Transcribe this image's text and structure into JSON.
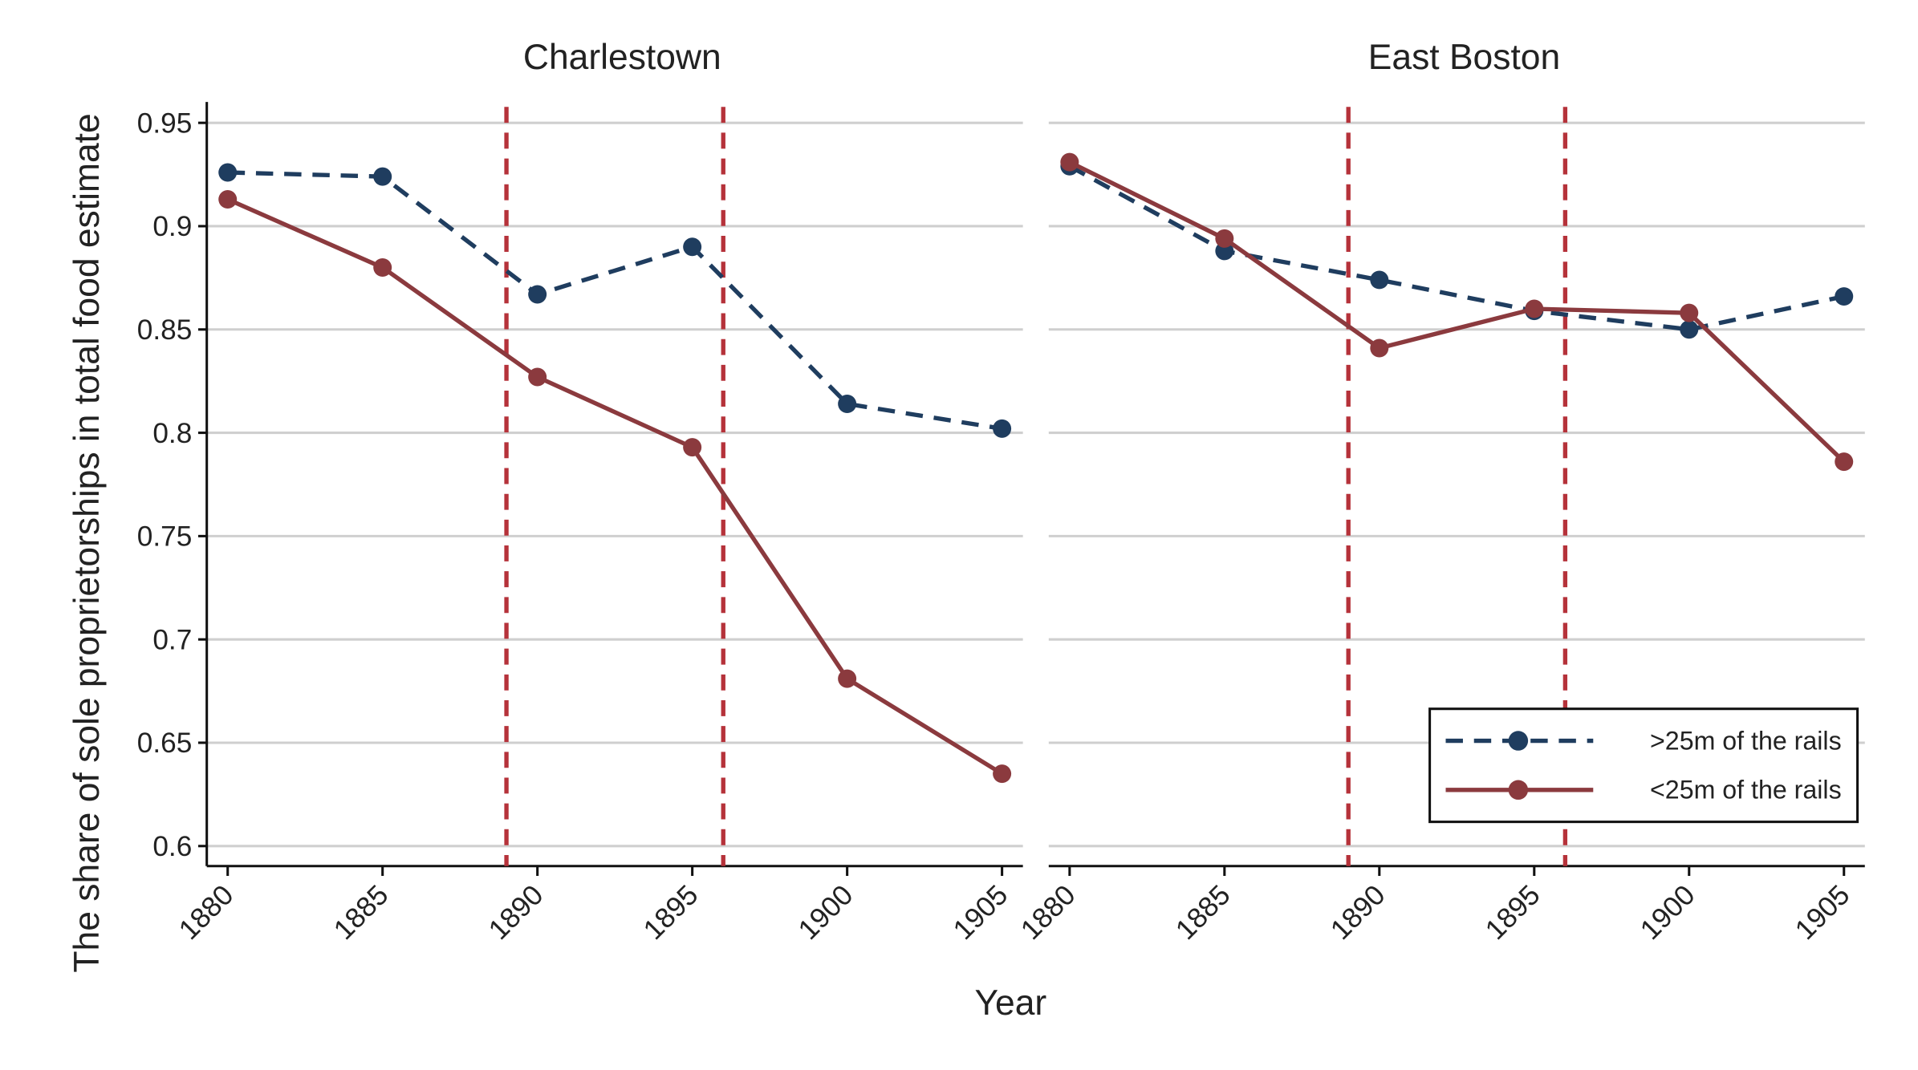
{
  "chart_data": {
    "type": "line",
    "ylabel": "The share of sole proprietorships in total food estimate",
    "xlabel": "Year",
    "ylim": [
      0.59,
      0.96
    ],
    "yticks": [
      "0.6",
      "0.65",
      "0.7",
      "0.75",
      "0.8",
      "0.85",
      "0.9",
      "0.95"
    ],
    "ytick_values": [
      0.6,
      0.65,
      0.7,
      0.75,
      0.8,
      0.85,
      0.9,
      0.95
    ],
    "x": [
      1880,
      1885,
      1890,
      1895,
      1900,
      1905
    ],
    "xticks": [
      "1880",
      "1885",
      "1890",
      "1895",
      "1900",
      "1905"
    ],
    "xlim": [
      1879.3,
      1905.7
    ],
    "grid": true,
    "vlines": [
      1889,
      1896
    ],
    "legend": {
      "placement": "bottom-right",
      "entries": [
        ">25m of the rails",
        "<25m of the rails"
      ]
    },
    "colors": {
      "far": "#1f3d5f",
      "near": "#8b3a3e",
      "vline": "#b5323a",
      "grid": "#cfcfcf"
    },
    "panels": [
      {
        "title": "Charlestown",
        "series": [
          {
            "name": ">25m of the rails",
            "style": "dashed",
            "values": [
              0.926,
              0.924,
              0.867,
              0.89,
              0.814,
              0.802
            ]
          },
          {
            "name": "<25m of the rails",
            "style": "solid",
            "values": [
              0.913,
              0.88,
              0.827,
              0.793,
              0.681,
              0.635
            ]
          }
        ]
      },
      {
        "title": "East Boston",
        "series": [
          {
            "name": ">25m of the rails",
            "style": "dashed",
            "values": [
              0.929,
              0.888,
              0.874,
              0.859,
              0.85,
              0.866
            ]
          },
          {
            "name": "<25m of the rails",
            "style": "solid",
            "values": [
              0.931,
              0.894,
              0.841,
              0.86,
              0.858,
              0.786
            ]
          }
        ]
      }
    ]
  }
}
